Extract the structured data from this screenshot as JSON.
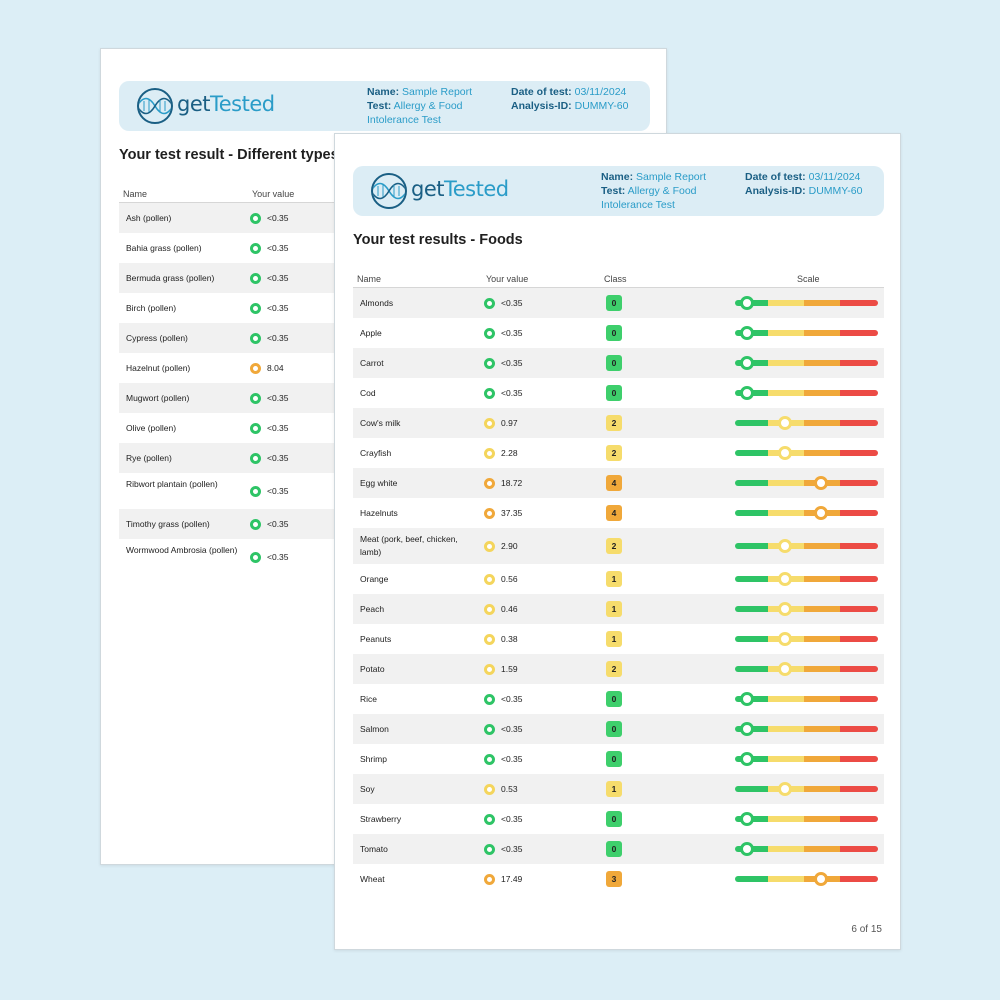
{
  "brand": {
    "name_part1": "get",
    "name_part2": "Tested",
    "dark_color": "#1a5f84",
    "light_color": "#2a9cc8",
    "logo_icon": "dna-helix-icon"
  },
  "header": {
    "name_label": "Name:",
    "name_value": "Sample Report",
    "test_label": "Test:",
    "test_value": "Allergy & Food Intolerance Test",
    "date_label": "Date of test:",
    "date_value": "03/11/2024",
    "analysis_label": "Analysis-ID:",
    "analysis_value": "DUMMY-60"
  },
  "colors": {
    "green": "#2ec466",
    "yellow": "#f6dc6c",
    "orange": "#f0a83a",
    "red": "#ec4b45",
    "background": "#dceef6"
  },
  "back_page": {
    "title": "Your test result - Different types of pollen",
    "columns": {
      "name": "Name",
      "value": "Your value"
    },
    "rows": [
      {
        "name": "Ash (pollen)",
        "value": "<0.35",
        "level": "green"
      },
      {
        "name": "Bahia grass (pollen)",
        "value": "<0.35",
        "level": "green"
      },
      {
        "name": "Bermuda grass (pollen)",
        "value": "<0.35",
        "level": "green"
      },
      {
        "name": "Birch (pollen)",
        "value": "<0.35",
        "level": "green"
      },
      {
        "name": "Cypress (pollen)",
        "value": "<0.35",
        "level": "green"
      },
      {
        "name": "Hazelnut (pollen)",
        "value": "8.04",
        "level": "orange"
      },
      {
        "name": "Mugwort (pollen)",
        "value": "<0.35",
        "level": "green"
      },
      {
        "name": "Olive (pollen)",
        "value": "<0.35",
        "level": "green"
      },
      {
        "name": "Rye (pollen)",
        "value": "<0.35",
        "level": "green"
      },
      {
        "name": "Ribwort plantain (pollen)",
        "value": "<0.35",
        "level": "green"
      },
      {
        "name": "Timothy grass (pollen)",
        "value": "<0.35",
        "level": "green"
      },
      {
        "name": "Wormwood Ambrosia (pollen)",
        "value": "<0.35",
        "level": "green"
      }
    ]
  },
  "front_page": {
    "title": "Your test results - Foods",
    "columns": {
      "name": "Name",
      "value": "Your value",
      "class": "Class",
      "scale": "Scale"
    },
    "rows": [
      {
        "name": "Almonds",
        "value": "<0.35",
        "class": "0",
        "level": "green"
      },
      {
        "name": "Apple",
        "value": "<0.35",
        "class": "0",
        "level": "green"
      },
      {
        "name": "Carrot",
        "value": "<0.35",
        "class": "0",
        "level": "green"
      },
      {
        "name": "Cod",
        "value": "<0.35",
        "class": "0",
        "level": "green"
      },
      {
        "name": "Cow's milk",
        "value": "0.97",
        "class": "2",
        "level": "yellow"
      },
      {
        "name": "Crayfish",
        "value": "2.28",
        "class": "2",
        "level": "yellow"
      },
      {
        "name": "Egg white",
        "value": "18.72",
        "class": "4",
        "level": "orange"
      },
      {
        "name": "Hazelnuts",
        "value": "37.35",
        "class": "4",
        "level": "orange"
      },
      {
        "name": "Meat (pork, beef, chicken, lamb)",
        "value": "2.90",
        "class": "2",
        "level": "yellow"
      },
      {
        "name": "Orange",
        "value": "0.56",
        "class": "1",
        "level": "yellow"
      },
      {
        "name": "Peach",
        "value": "0.46",
        "class": "1",
        "level": "yellow"
      },
      {
        "name": "Peanuts",
        "value": "0.38",
        "class": "1",
        "level": "yellow"
      },
      {
        "name": "Potato",
        "value": "1.59",
        "class": "2",
        "level": "yellow"
      },
      {
        "name": "Rice",
        "value": "<0.35",
        "class": "0",
        "level": "green"
      },
      {
        "name": "Salmon",
        "value": "<0.35",
        "class": "0",
        "level": "green"
      },
      {
        "name": "Shrimp",
        "value": "<0.35",
        "class": "0",
        "level": "green"
      },
      {
        "name": "Soy",
        "value": "0.53",
        "class": "1",
        "level": "yellow"
      },
      {
        "name": "Strawberry",
        "value": "<0.35",
        "class": "0",
        "level": "green"
      },
      {
        "name": "Tomato",
        "value": "<0.35",
        "class": "0",
        "level": "green"
      },
      {
        "name": "Wheat",
        "value": "17.49",
        "class": "3",
        "level": "orange"
      }
    ],
    "page_number": "6 of 15"
  }
}
